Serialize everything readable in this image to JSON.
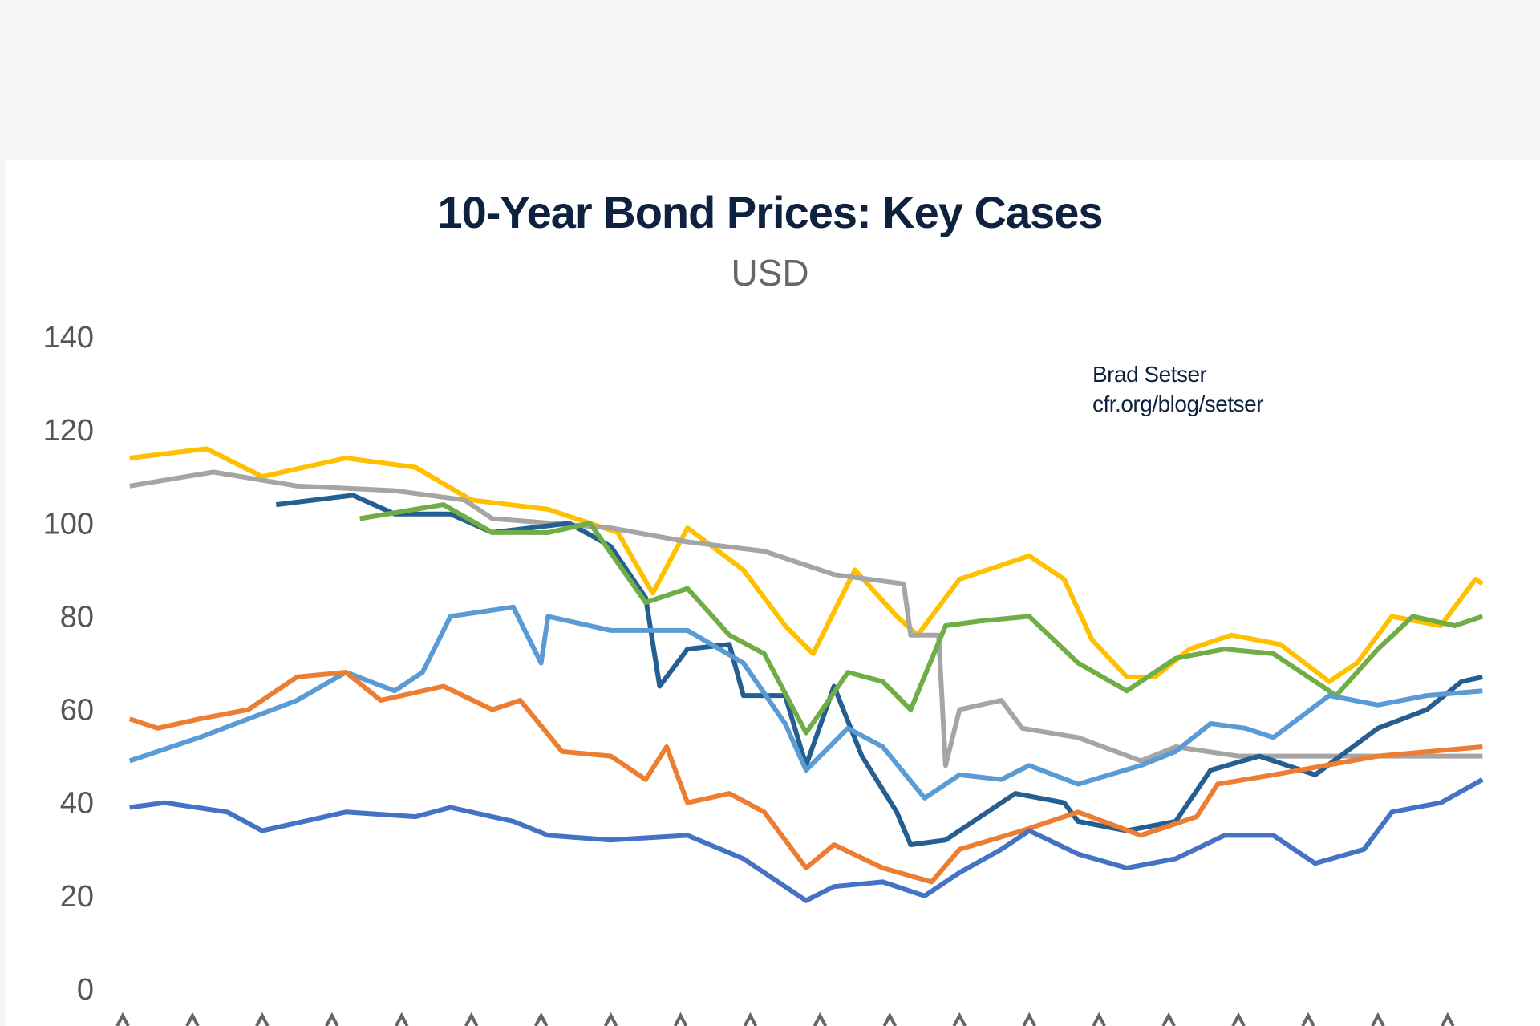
{
  "chart_data": {
    "type": "line",
    "title": "10-Year Bond Prices: Key Cases",
    "subtitle": "USD",
    "annotation": [
      "Brad Setser",
      "cfr.org/blog/setser"
    ],
    "ylim": [
      0,
      140
    ],
    "yticks": [
      0,
      20,
      40,
      60,
      80,
      100,
      120,
      140
    ],
    "grid": false,
    "legend": "none",
    "x_tick_count": 20,
    "series": [
      {
        "color": "#FFC000",
        "points": [
          [
            0.1,
            114
          ],
          [
            1.2,
            116
          ],
          [
            2.0,
            110
          ],
          [
            3.2,
            114
          ],
          [
            4.2,
            112
          ],
          [
            5.0,
            105
          ],
          [
            6.1,
            103
          ],
          [
            7.1,
            98
          ],
          [
            7.6,
            85
          ],
          [
            8.1,
            99
          ],
          [
            8.9,
            90
          ],
          [
            9.5,
            78
          ],
          [
            9.9,
            72
          ],
          [
            10.5,
            90
          ],
          [
            11.1,
            80
          ],
          [
            11.4,
            76
          ],
          [
            12.0,
            88
          ],
          [
            13.0,
            93
          ],
          [
            13.5,
            88
          ],
          [
            13.9,
            75
          ],
          [
            14.4,
            67
          ],
          [
            14.8,
            67
          ],
          [
            15.3,
            73
          ],
          [
            15.9,
            76
          ],
          [
            16.6,
            74
          ],
          [
            17.3,
            66
          ],
          [
            17.7,
            70
          ],
          [
            18.2,
            80
          ],
          [
            18.9,
            78
          ],
          [
            19.4,
            88
          ],
          [
            19.5,
            87
          ]
        ]
      },
      {
        "color": "#A5A5A5",
        "points": [
          [
            0.1,
            108
          ],
          [
            1.3,
            111
          ],
          [
            2.5,
            108
          ],
          [
            3.9,
            107
          ],
          [
            4.9,
            105
          ],
          [
            5.3,
            101
          ],
          [
            7.0,
            99
          ],
          [
            8.1,
            96
          ],
          [
            9.2,
            94
          ],
          [
            10.2,
            89
          ],
          [
            11.2,
            87
          ],
          [
            11.3,
            76
          ],
          [
            11.7,
            76
          ],
          [
            11.8,
            48
          ],
          [
            12.0,
            60
          ],
          [
            12.6,
            62
          ],
          [
            12.9,
            56
          ],
          [
            13.7,
            54
          ],
          [
            14.6,
            49
          ],
          [
            15.1,
            52
          ],
          [
            16.0,
            50
          ],
          [
            17.3,
            50
          ],
          [
            19.5,
            50
          ]
        ]
      },
      {
        "color": "#255E91",
        "points": [
          [
            2.2,
            104
          ],
          [
            3.3,
            106
          ],
          [
            3.9,
            102
          ],
          [
            4.7,
            102
          ],
          [
            5.3,
            98
          ],
          [
            6.4,
            100
          ],
          [
            7.0,
            95
          ],
          [
            7.5,
            84
          ],
          [
            7.7,
            65
          ],
          [
            8.1,
            73
          ],
          [
            8.7,
            74
          ],
          [
            8.9,
            63
          ],
          [
            9.5,
            63
          ],
          [
            9.8,
            48
          ],
          [
            10.2,
            65
          ],
          [
            10.6,
            50
          ],
          [
            11.1,
            38
          ],
          [
            11.3,
            31
          ],
          [
            11.8,
            32
          ],
          [
            12.2,
            36
          ],
          [
            12.8,
            42
          ],
          [
            13.5,
            40
          ],
          [
            13.7,
            36
          ],
          [
            14.4,
            34
          ],
          [
            15.1,
            36
          ],
          [
            15.6,
            47
          ],
          [
            16.3,
            50
          ],
          [
            17.1,
            46
          ],
          [
            18.0,
            56
          ],
          [
            18.7,
            60
          ],
          [
            19.2,
            66
          ],
          [
            19.5,
            67
          ]
        ]
      },
      {
        "color": "#70AD47",
        "points": [
          [
            3.4,
            101
          ],
          [
            4.6,
            104
          ],
          [
            5.3,
            98
          ],
          [
            6.1,
            98
          ],
          [
            6.7,
            100
          ],
          [
            7.5,
            83
          ],
          [
            8.1,
            86
          ],
          [
            8.7,
            76
          ],
          [
            9.2,
            72
          ],
          [
            9.8,
            55
          ],
          [
            10.4,
            68
          ],
          [
            10.9,
            66
          ],
          [
            11.3,
            60
          ],
          [
            11.8,
            78
          ],
          [
            12.3,
            79
          ],
          [
            13.0,
            80
          ],
          [
            13.7,
            70
          ],
          [
            14.4,
            64
          ],
          [
            15.1,
            71
          ],
          [
            15.8,
            73
          ],
          [
            16.5,
            72
          ],
          [
            17.4,
            63
          ],
          [
            18.0,
            73
          ],
          [
            18.5,
            80
          ],
          [
            19.1,
            78
          ],
          [
            19.5,
            80
          ]
        ]
      },
      {
        "color": "#5B9BD5",
        "points": [
          [
            0.1,
            49
          ],
          [
            1.1,
            54
          ],
          [
            1.8,
            58
          ],
          [
            2.5,
            62
          ],
          [
            3.2,
            68
          ],
          [
            3.9,
            64
          ],
          [
            4.3,
            68
          ],
          [
            4.7,
            80
          ],
          [
            5.6,
            82
          ],
          [
            6.0,
            70
          ],
          [
            6.1,
            80
          ],
          [
            7.0,
            77
          ],
          [
            8.1,
            77
          ],
          [
            8.9,
            70
          ],
          [
            9.5,
            57
          ],
          [
            9.8,
            47
          ],
          [
            10.4,
            56
          ],
          [
            10.9,
            52
          ],
          [
            11.5,
            41
          ],
          [
            12.0,
            46
          ],
          [
            12.6,
            45
          ],
          [
            13.0,
            48
          ],
          [
            13.7,
            44
          ],
          [
            14.6,
            48
          ],
          [
            15.1,
            51
          ],
          [
            15.6,
            57
          ],
          [
            16.1,
            56
          ],
          [
            16.5,
            54
          ],
          [
            17.3,
            63
          ],
          [
            18.0,
            61
          ],
          [
            18.7,
            63
          ],
          [
            19.5,
            64
          ]
        ]
      },
      {
        "color": "#ED7D31",
        "points": [
          [
            0.1,
            58
          ],
          [
            0.5,
            56
          ],
          [
            1.1,
            58
          ],
          [
            1.8,
            60
          ],
          [
            2.5,
            67
          ],
          [
            3.2,
            68
          ],
          [
            3.7,
            62
          ],
          [
            4.6,
            65
          ],
          [
            5.3,
            60
          ],
          [
            5.7,
            62
          ],
          [
            6.3,
            51
          ],
          [
            7.0,
            50
          ],
          [
            7.5,
            45
          ],
          [
            7.8,
            52
          ],
          [
            8.1,
            40
          ],
          [
            8.7,
            42
          ],
          [
            9.2,
            38
          ],
          [
            9.8,
            26
          ],
          [
            10.2,
            31
          ],
          [
            10.9,
            26
          ],
          [
            11.6,
            23
          ],
          [
            12.0,
            30
          ],
          [
            12.9,
            34
          ],
          [
            13.7,
            38
          ],
          [
            14.6,
            33
          ],
          [
            15.4,
            37
          ],
          [
            15.7,
            44
          ],
          [
            16.5,
            46
          ],
          [
            18.0,
            50
          ],
          [
            19.5,
            52
          ]
        ]
      },
      {
        "color": "#4472C4",
        "points": [
          [
            0.1,
            39
          ],
          [
            0.6,
            40
          ],
          [
            1.5,
            38
          ],
          [
            2.0,
            34
          ],
          [
            3.2,
            38
          ],
          [
            4.2,
            37
          ],
          [
            4.7,
            39
          ],
          [
            5.6,
            36
          ],
          [
            6.1,
            33
          ],
          [
            7.0,
            32
          ],
          [
            8.1,
            33
          ],
          [
            8.9,
            28
          ],
          [
            9.8,
            19
          ],
          [
            10.2,
            22
          ],
          [
            10.9,
            23
          ],
          [
            11.5,
            20
          ],
          [
            12.0,
            25
          ],
          [
            12.6,
            30
          ],
          [
            13.0,
            34
          ],
          [
            13.7,
            29
          ],
          [
            14.4,
            26
          ],
          [
            15.1,
            28
          ],
          [
            15.8,
            33
          ],
          [
            16.5,
            33
          ],
          [
            17.1,
            27
          ],
          [
            17.8,
            30
          ],
          [
            18.2,
            38
          ],
          [
            18.9,
            40
          ],
          [
            19.5,
            45
          ]
        ]
      }
    ]
  }
}
